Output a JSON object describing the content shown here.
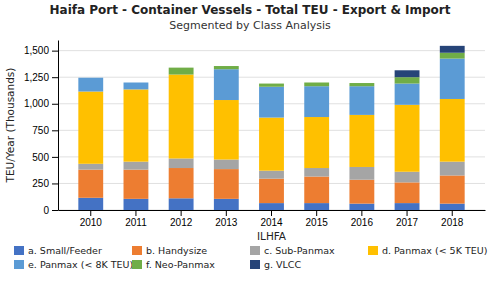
{
  "chart_data": {
    "type": "bar",
    "stacked": true,
    "title": "Haifa Port - Container Vessels - Total TEU - Export & Import",
    "subtitle": "Segmented by Class Analysis",
    "x_label": "ILHFA",
    "y_label": "TEU/Year (Thousands)",
    "categories": [
      "2010",
      "2011",
      "2012",
      "2013",
      "2014",
      "2015",
      "2016",
      "2017",
      "2018"
    ],
    "series": [
      {
        "name": "a. Small/Feeder",
        "color": "#4472C4",
        "values": [
          115,
          105,
          110,
          105,
          65,
          65,
          60,
          65,
          60
        ]
      },
      {
        "name": "b. Handysize",
        "color": "#ED7D31",
        "values": [
          265,
          275,
          285,
          280,
          230,
          250,
          225,
          195,
          265
        ]
      },
      {
        "name": "c. Sub-Panmax",
        "color": "#A5A5A5",
        "values": [
          55,
          75,
          90,
          90,
          75,
          80,
          120,
          100,
          130
        ]
      },
      {
        "name": "d. Panmax (< 5K TEU)",
        "color": "#FFC000",
        "values": [
          680,
          680,
          790,
          560,
          500,
          480,
          490,
          630,
          590
        ]
      },
      {
        "name": "e. Panmax (< 8K TEU)",
        "color": "#5B9BD5",
        "values": [
          130,
          65,
          0,
          290,
          290,
          290,
          270,
          200,
          380
        ]
      },
      {
        "name": "f. Neo-Panmax",
        "color": "#70AD47",
        "values": [
          0,
          0,
          65,
          30,
          30,
          35,
          30,
          60,
          55
        ]
      },
      {
        "name": "g. VLCC",
        "color": "#264478",
        "values": [
          0,
          0,
          0,
          0,
          0,
          0,
          0,
          65,
          65
        ]
      }
    ],
    "ylim": [
      0,
      1600
    ],
    "yticks": [
      0,
      250,
      500,
      750,
      {
        "value": 1000,
        "label": "1,000"
      },
      {
        "value": 1250,
        "label": "1,250"
      },
      {
        "value": 1500,
        "label": "1,500"
      }
    ],
    "grid": true,
    "legend": "bottom"
  }
}
